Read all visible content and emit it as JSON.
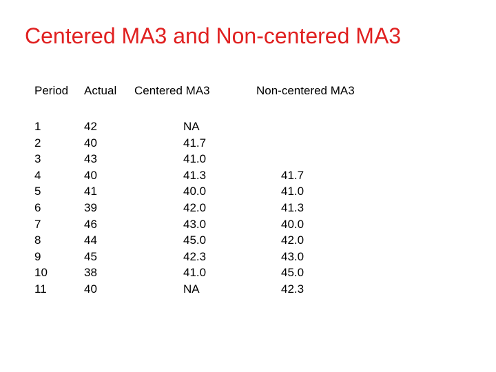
{
  "header": {
    "title": "Centered MA3 and Non-centered MA3"
  },
  "table": {
    "headers": [
      "Period",
      "Actual",
      "Centered MA3",
      "Non-centered MA3"
    ],
    "rows": [
      [
        "1",
        "42",
        "NA",
        null
      ],
      [
        "2",
        "40",
        "41.7",
        null
      ],
      [
        "3",
        "43",
        "41.0",
        null
      ],
      [
        "4",
        "40",
        "41.3",
        "41.7"
      ],
      [
        "5",
        "41",
        "40.0",
        "41.0"
      ],
      [
        "6",
        "39",
        "42.0",
        "41.3"
      ],
      [
        "7",
        "46",
        "43.0",
        "40.0"
      ],
      [
        "8",
        "44",
        "45.0",
        "42.0"
      ],
      [
        "9",
        "45",
        "42.3",
        "43.0"
      ],
      [
        "10",
        "38",
        "41.0",
        "45.0"
      ],
      [
        "11",
        "40",
        "NA",
        "42.3"
      ]
    ]
  }
}
